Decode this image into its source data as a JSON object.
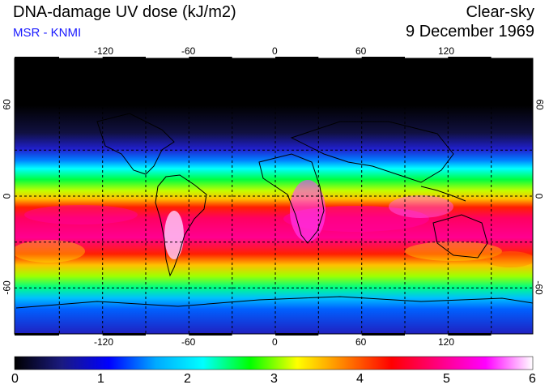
{
  "header": {
    "title": "DNA-damage UV dose (kJ/m2)",
    "credit": "MSR - KNMI",
    "sky_condition": "Clear-sky",
    "date": "9 December 1969"
  },
  "map": {
    "projection": "equirectangular",
    "lon_ticks_top": [
      "-120",
      "-60",
      "0",
      "60",
      "120"
    ],
    "lon_ticks_bottom": [
      "-120",
      "-60",
      "0",
      "60",
      "120"
    ],
    "lat_ticks_left": [
      "60",
      "0",
      "-60"
    ],
    "lat_ticks_right": [
      "60",
      "0",
      "-60"
    ]
  },
  "colorbar": {
    "min": 0,
    "max": 6,
    "tick_labels": [
      "0",
      "1",
      "2",
      "3",
      "4",
      "5",
      "6"
    ],
    "stops": [
      "#000000",
      "#1a1a80",
      "#0000ff",
      "#00aaff",
      "#00ffff",
      "#00ff00",
      "#ffff00",
      "#ff8000",
      "#ff0000",
      "#ff0080",
      "#ff00ff",
      "#ffffff"
    ]
  }
}
